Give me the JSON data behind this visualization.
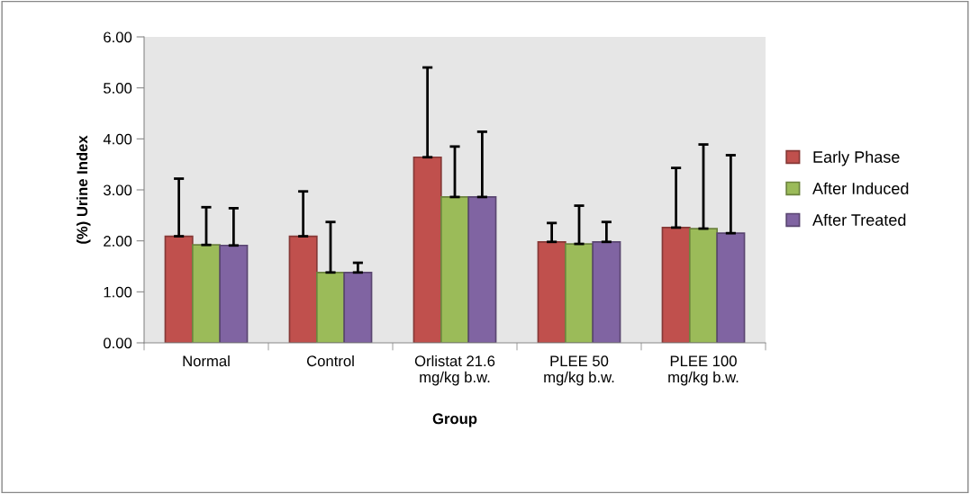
{
  "chart_data": {
    "type": "bar",
    "xlabel": "Group",
    "ylabel": "(%) Urine Index",
    "categories": [
      "Normal",
      "Control",
      "Orlistat 21.6\nmg/kg b.w.",
      "PLEE 50\nmg/kg b.w.",
      "PLEE 100\nmg/kg b.w."
    ],
    "series": [
      {
        "name": "Early Phase",
        "color": "#c0504d",
        "values": [
          2.09,
          2.09,
          3.64,
          1.98,
          2.26
        ],
        "errors": [
          [
            2.09,
            3.22
          ],
          [
            2.09,
            2.97
          ],
          [
            3.64,
            5.4
          ],
          [
            1.98,
            2.35
          ],
          [
            2.26,
            3.43
          ]
        ]
      },
      {
        "name": "After Induced",
        "color": "#9bbb59",
        "values": [
          1.92,
          1.38,
          2.86,
          1.94,
          2.24
        ],
        "errors": [
          [
            1.92,
            2.66
          ],
          [
            1.38,
            2.37
          ],
          [
            2.86,
            3.85
          ],
          [
            1.94,
            2.69
          ],
          [
            2.24,
            3.89
          ]
        ]
      },
      {
        "name": "After Treated",
        "color": "#8064a2",
        "values": [
          1.91,
          1.38,
          2.86,
          1.98,
          2.15
        ],
        "errors": [
          [
            1.91,
            2.64
          ],
          [
            1.38,
            1.57
          ],
          [
            2.86,
            4.14
          ],
          [
            1.98,
            2.37
          ],
          [
            2.15,
            3.68
          ]
        ]
      }
    ],
    "ylim": [
      0,
      6
    ],
    "yticks": [
      {
        "value": 0,
        "label": "0.00"
      },
      {
        "value": 1,
        "label": "1.00"
      },
      {
        "value": 2,
        "label": "2.00"
      },
      {
        "value": 3,
        "label": "3.00"
      },
      {
        "value": 4,
        "label": "4.00"
      },
      {
        "value": 5,
        "label": "5.00"
      },
      {
        "value": 6,
        "label": "6.00"
      }
    ],
    "grid": false,
    "legend": "right"
  }
}
